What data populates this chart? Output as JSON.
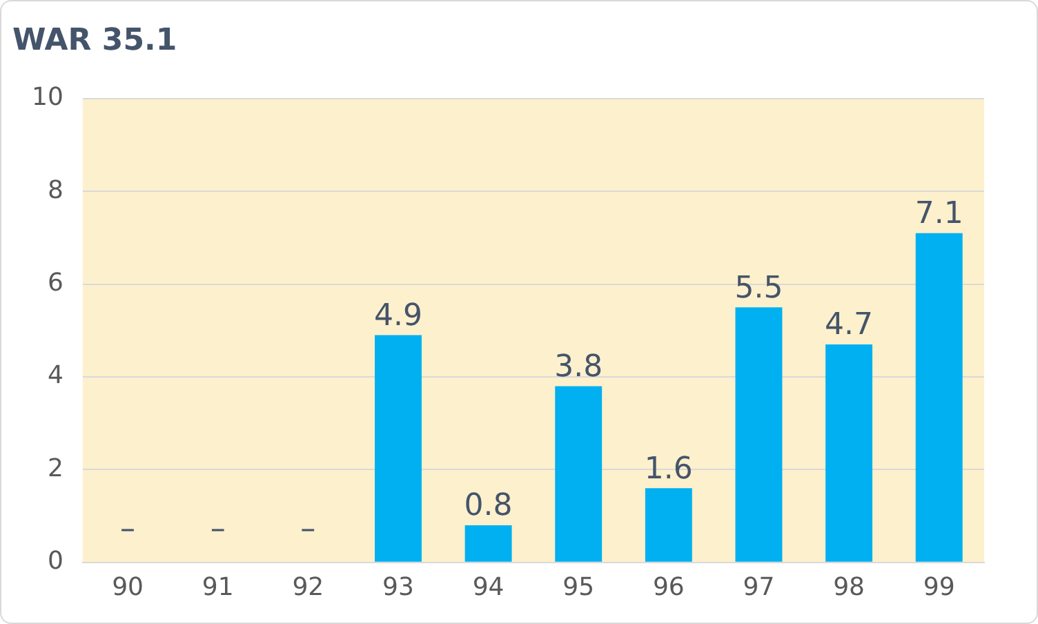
{
  "chart_data": {
    "type": "bar",
    "title": "WAR 35.1",
    "categories": [
      "90",
      "91",
      "92",
      "93",
      "94",
      "95",
      "96",
      "97",
      "98",
      "99"
    ],
    "values": [
      null,
      null,
      null,
      4.9,
      0.8,
      3.8,
      1.6,
      5.5,
      4.7,
      7.1
    ],
    "value_labels": [
      "–",
      "–",
      "–",
      "4.9",
      "0.8",
      "3.8",
      "1.6",
      "5.5",
      "4.7",
      "7.1"
    ],
    "color": "#00b0f0",
    "ylim": [
      0,
      10
    ],
    "yticks": [
      0,
      2,
      4,
      6,
      8,
      10
    ],
    "grid": "y",
    "legend": false
  }
}
